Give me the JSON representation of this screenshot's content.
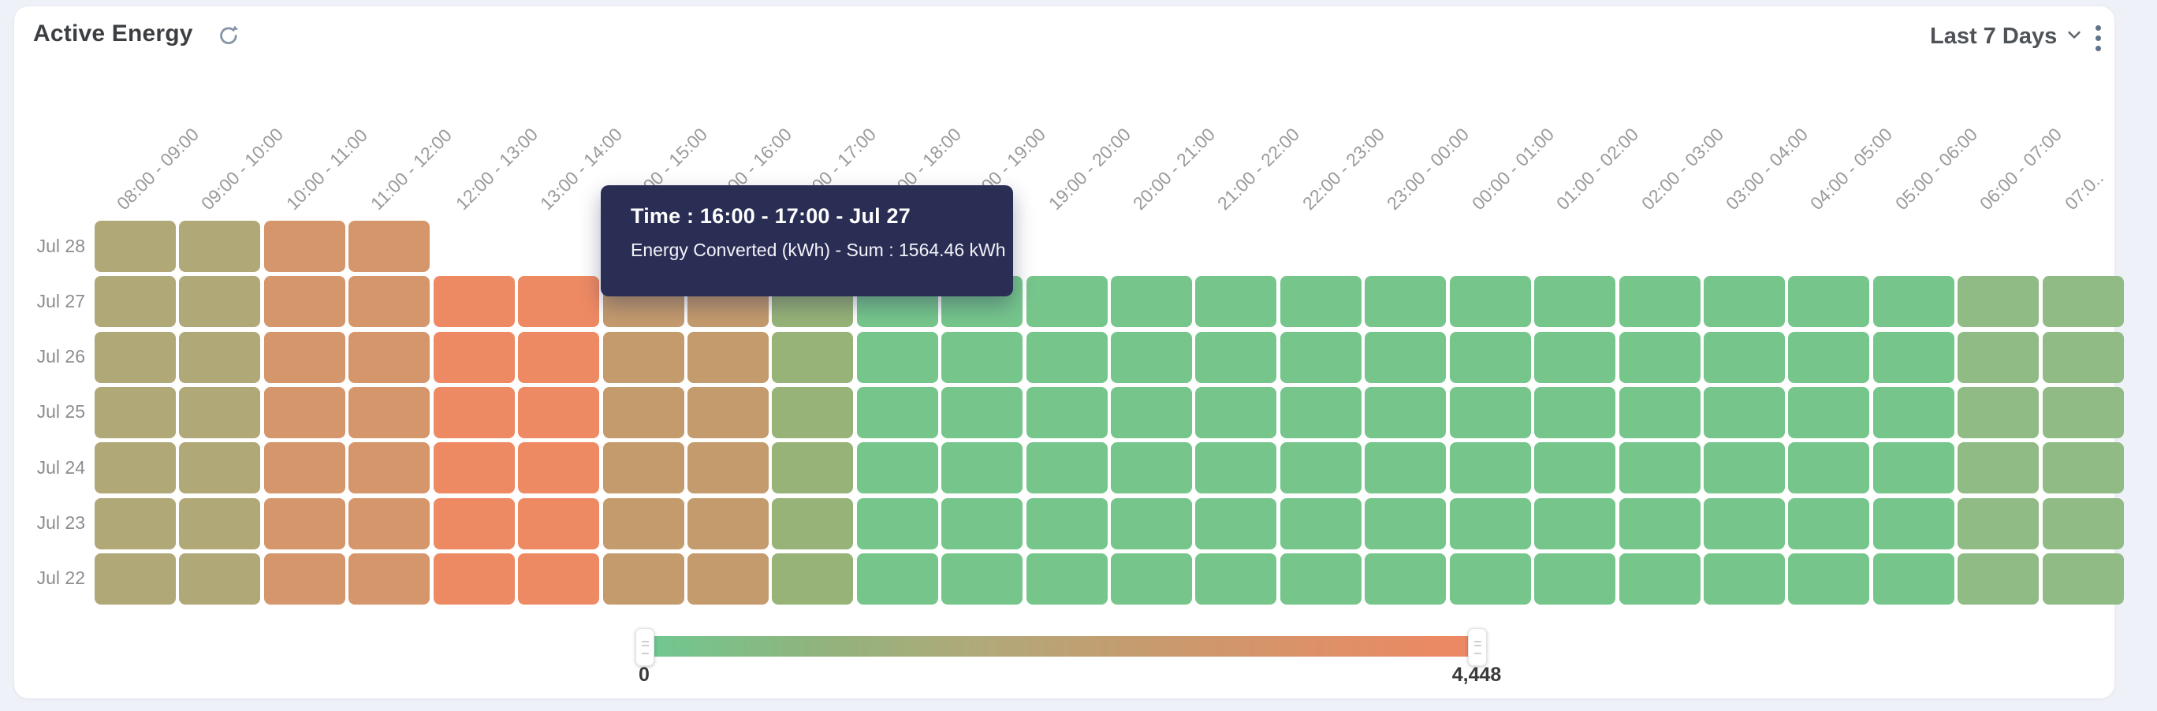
{
  "header": {
    "title": "Active Energy",
    "range_label": "Last 7 Days"
  },
  "icons": {
    "refresh": "refresh-icon",
    "chevron": "chevron-down-icon",
    "menu": "kebab-menu-icon"
  },
  "tooltip": {
    "title": "Time : 16:00 - 17:00 - Jul 27",
    "body": "Energy Converted (kWh) - Sum : 1564.46 kWh",
    "bg": "#2a2e55"
  },
  "colors": {
    "page_bg": "#eff1f8",
    "card_bg": "#ffffff",
    "axis_label": "#9a9a9a"
  },
  "chart_data": {
    "type": "heatmap",
    "title": "Active Energy",
    "series_name": "Energy Converted (kWh)",
    "x_labels": [
      "08:00 - 09:00",
      "09:00 - 10:00",
      "10:00 - 11:00",
      "11:00 - 12:00",
      "12:00 - 13:00",
      "13:00 - 14:00",
      "14:00 - 15:00",
      "15:00 - 16:00",
      "16:00 - 17:00",
      "17:00 - 18:00",
      "18:00 - 19:00",
      "19:00 - 20:00",
      "20:00 - 21:00",
      "21:00 - 22:00",
      "22:00 - 23:00",
      "23:00 - 00:00",
      "00:00 - 01:00",
      "01:00 - 02:00",
      "02:00 - 03:00",
      "03:00 - 04:00",
      "04:00 - 05:00",
      "05:00 - 06:00",
      "06:00 - 07:00",
      "07:0.."
    ],
    "y_labels": [
      "Jul 28",
      "Jul 27",
      "Jul 26",
      "Jul 25",
      "Jul 24",
      "Jul 23",
      "Jul 22"
    ],
    "column_colors": [
      "#b0a877",
      "#b0a877",
      "#d5966b",
      "#d5966b",
      "#ee8a63",
      "#ee8a63",
      "#c49b6d",
      "#c49b6d",
      "#97b377",
      "#76c68c",
      "#76c68c",
      "#76c68c",
      "#76c68c",
      "#76c68c",
      "#76c68c",
      "#76c68c",
      "#76c68c",
      "#76c68c",
      "#76c68c",
      "#76c68c",
      "#76c68c",
      "#76c68c",
      "#90bb85",
      "#90bb85"
    ],
    "row_cell_counts": [
      4,
      24,
      24,
      24,
      24,
      24,
      24
    ],
    "highlighted_cell": {
      "row": "Jul 27",
      "column": "16:00 - 17:00",
      "sum_kwh": 1564.46
    },
    "legend": {
      "min_label": "0",
      "max_label": "4,448",
      "range": [
        0,
        4448
      ],
      "gradient": [
        "#6fc892",
        "#8fb47d",
        "#b0a97a",
        "#c69b6e",
        "#dc9168",
        "#ee8763"
      ],
      "position": "bottom"
    },
    "grid": false,
    "axis_label_rotation": -45
  }
}
